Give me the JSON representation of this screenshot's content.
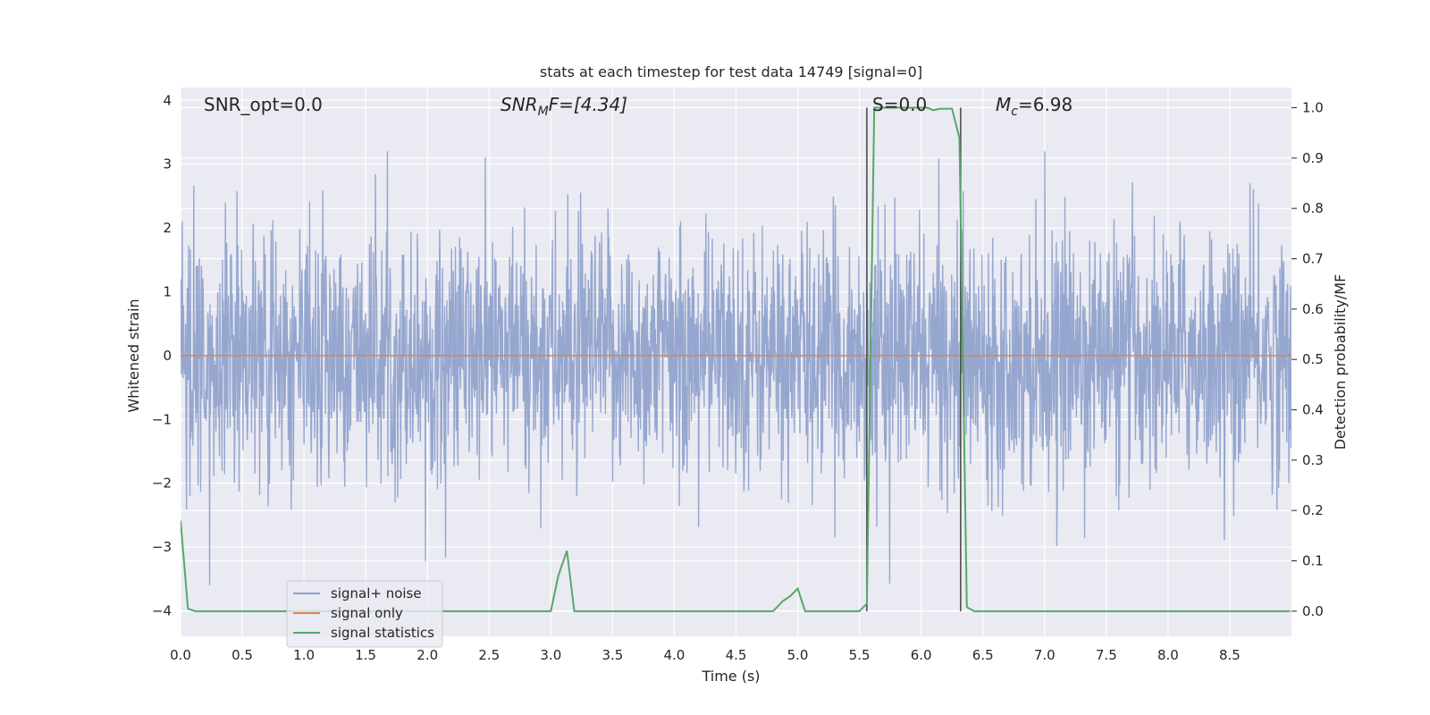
{
  "chart_data": {
    "type": "line",
    "title": "stats at each timestep for test data 14749 [signal=0]",
    "xlabel": "Time (s)",
    "ylabel_left": "Whitened strain",
    "ylabel_right": "Detection probability/MF",
    "xlim": [
      0,
      9.0
    ],
    "ylim_left": [
      -4.4,
      4.2
    ],
    "ylim_right": [
      -0.05,
      1.04
    ],
    "x_ticks": [
      "0.0",
      "0.5",
      "1.0",
      "1.5",
      "2.0",
      "2.5",
      "3.0",
      "3.5",
      "4.0",
      "4.5",
      "5.0",
      "5.5",
      "6.0",
      "6.5",
      "7.0",
      "7.5",
      "8.0",
      "8.5"
    ],
    "y_left_ticks": [
      "4",
      "3",
      "2",
      "1",
      "0",
      "−1",
      "−2",
      "−3",
      "−4"
    ],
    "y_right_ticks": [
      "1.0",
      "0.9",
      "0.8",
      "0.7",
      "0.6",
      "0.5",
      "0.4",
      "0.3",
      "0.2",
      "0.1",
      "0.0"
    ],
    "grid": true,
    "legend_position": "lower-left",
    "annotations": {
      "snr_opt": "SNR_opt=0.0",
      "snr_mf_main": "SNR",
      "snr_mf_sub": "M",
      "snr_mf_rest": "F=[4.34]",
      "s_label": "S=0.0",
      "mc_main": "M",
      "mc_sub": "c",
      "mc_rest": "=6.98"
    },
    "vertical_lines": [
      5.56,
      6.32
    ],
    "series": [
      {
        "name": "signal+ noise",
        "color": "#8da0cb",
        "description": "whitened strain noise, amplitude mostly within ±2.5 with spikes to ±3.5",
        "envelope_upper": 2.6,
        "envelope_lower": -2.6
      },
      {
        "name": "signal only",
        "color": "#dd8452",
        "values_constant": 0.0
      },
      {
        "name": "signal statistics",
        "color": "#55a868",
        "axis": "right",
        "x": [
          0.0,
          0.06,
          0.12,
          0.2,
          3.0,
          3.06,
          3.13,
          3.19,
          3.25,
          4.8,
          4.88,
          4.94,
          5.0,
          5.06,
          5.12,
          5.5,
          5.56,
          5.62,
          5.68,
          5.74,
          5.9,
          6.05,
          6.1,
          6.15,
          6.25,
          6.31,
          6.37,
          6.43,
          6.5,
          8.99
        ],
        "y": [
          0.18,
          0.005,
          0.0,
          0.0,
          0.0,
          0.07,
          0.12,
          0.0,
          0.0,
          0.0,
          0.02,
          0.03,
          0.045,
          0.0,
          0.0,
          0.0,
          0.015,
          1.0,
          1.0,
          1.0,
          1.0,
          1.0,
          0.995,
          0.998,
          0.998,
          0.94,
          0.008,
          0.0,
          0.0,
          0.0
        ]
      }
    ]
  },
  "legend": {
    "items": [
      "signal+ noise",
      "signal only",
      "signal statistics"
    ]
  }
}
